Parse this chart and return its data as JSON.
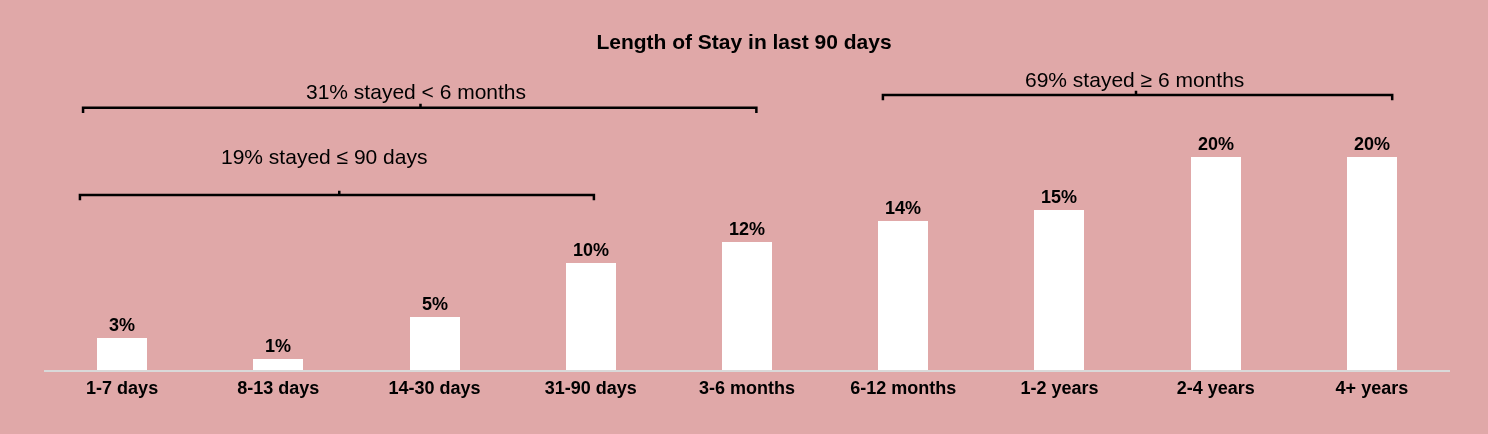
{
  "chart_data": {
    "type": "bar",
    "title": "Length of Stay in last 90 days",
    "categories": [
      "1-7 days",
      "8-13 days",
      "14-30 days",
      "31-90 days",
      "3-6 months",
      "6-12 months",
      "1-2 years",
      "2-4 years",
      "4+ years"
    ],
    "values": [
      3,
      1,
      5,
      10,
      12,
      14,
      15,
      20,
      20
    ],
    "value_labels": [
      "3%",
      "1%",
      "5%",
      "10%",
      "12%",
      "14%",
      "15%",
      "20%",
      "20%"
    ],
    "color": "#ffffff",
    "annotations": [
      "31% stayed < 6 months",
      "19% stayed ≤ 90 days",
      "69% stayed ≥ 6 months"
    ],
    "grid": false,
    "legend": false
  }
}
